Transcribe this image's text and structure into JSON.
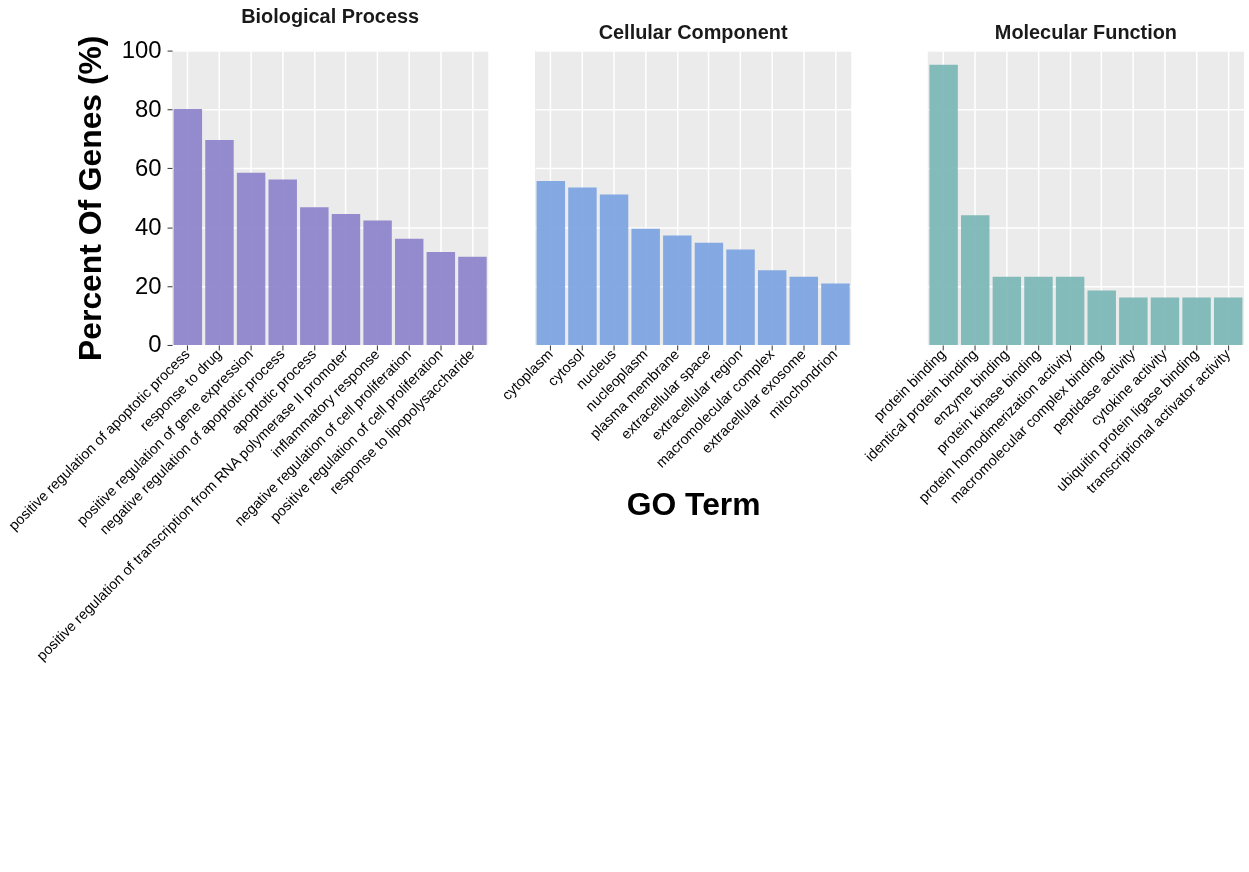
{
  "chart_data": [
    {
      "type": "bar",
      "title": "Biological Process",
      "ylabel": "Percent Of Genes (%)",
      "categories": [
        "positive regulation of apoptotic process",
        "response to drug",
        "positive regulation of gene expression",
        "negative regulation of apoptotic process",
        "apoptotic process",
        "positive regulation of transcription from RNA polymerase II promoter",
        "inflammatory response",
        "negative regulation of cell proliferation",
        "positive regulation of cell proliferation",
        "response to lipopolysaccharide"
      ],
      "values": [
        80.2,
        69.6,
        58.5,
        56.2,
        46.8,
        44.5,
        42.3,
        36.1,
        31.6,
        30.0
      ],
      "color": "#8f86cc",
      "ylim": [
        0,
        100
      ],
      "yticks": [
        0,
        20,
        40,
        60,
        80,
        100
      ],
      "grid": true
    },
    {
      "type": "bar",
      "title": "Cellular Component",
      "xlabel": "GO Term",
      "categories": [
        "cytoplasm",
        "cytosol",
        "nucleus",
        "nucleoplasm",
        "plasma membrane",
        "extracellular space",
        "extracellular region",
        "macromolecular complex",
        "extracellular exosome",
        "mitochondrion"
      ],
      "values": [
        55.7,
        53.5,
        51.1,
        39.5,
        37.2,
        34.7,
        32.4,
        25.4,
        23.2,
        20.9
      ],
      "color": "#7ea4e2",
      "ylim": [
        0,
        100
      ],
      "yticks": [
        0,
        20,
        40,
        60,
        80,
        100
      ],
      "grid": true,
      "tick_labels": "x"
    },
    {
      "type": "bar",
      "title": "Molecular Function",
      "categories": [
        "protein binding",
        "identical protein binding",
        "enzyme binding",
        "protein kinase binding",
        "protein homodimerization activity",
        "macromolecular complex binding",
        "peptidase activity",
        "cytokine activity",
        "ubiquitin protein ligase binding",
        "transcriptional activator activity"
      ],
      "values": [
        95.2,
        44.1,
        23.2,
        23.2,
        23.2,
        18.5,
        16.1,
        16.1,
        16.1,
        16.1
      ],
      "color": "#7db8b7",
      "ylim": [
        0,
        100
      ],
      "yticks": [
        0,
        20,
        40,
        60,
        80,
        100
      ],
      "grid": true,
      "tick_labels": "x"
    }
  ]
}
